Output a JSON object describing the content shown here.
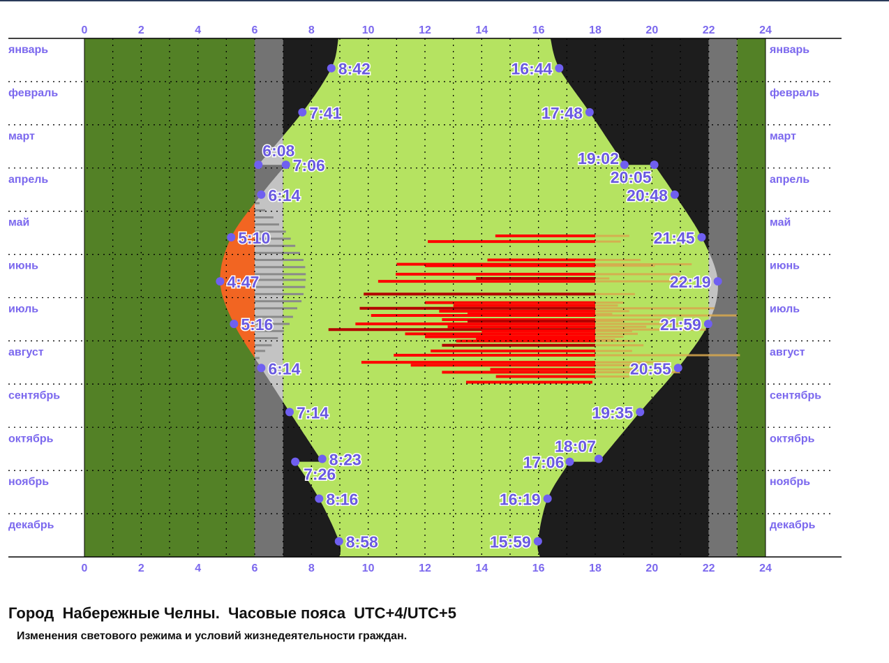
{
  "chart_data": {
    "type": "area",
    "x_axis": {
      "range": [
        0,
        24
      ],
      "ticks": [
        "0",
        "2",
        "4",
        "6",
        "8",
        "10",
        "12",
        "14",
        "16",
        "18",
        "20",
        "22",
        "24"
      ],
      "unit": "hour"
    },
    "y_axis": {
      "months": [
        "январь",
        "февраль",
        "март",
        "апрель",
        "май",
        "июнь",
        "июль",
        "август",
        "сентябрь",
        "октябрь",
        "ноябрь",
        "декабрь"
      ],
      "unit": "day of year",
      "range": [
        0,
        365
      ]
    },
    "grid": true,
    "colors": {
      "night_fixed": "#538126",
      "twilight_fixed": "#737373",
      "dark": "#1d1d1d",
      "daylight": "#b5e361",
      "daylight_in_twilight": "#c3c3c3",
      "daylight_before_6": "#f26522",
      "points": "#6f5ff0",
      "bars": "#ff0000",
      "bars_dark": "#b30000",
      "bar_extension": "#d9a84e",
      "gray_lines": "#8a8a8a"
    },
    "sunrise_segments": [
      [
        [
          0,
          8.95
        ],
        [
          21,
          8.7
        ],
        [
          52,
          7.68
        ],
        [
          89,
          6.13
        ]
      ],
      [
        [
          89,
          7.1
        ],
        [
          110,
          6.23
        ],
        [
          140,
          5.17
        ],
        [
          171,
          4.78
        ],
        [
          201,
          5.27
        ],
        [
          232,
          6.23
        ],
        [
          263,
          7.23
        ],
        [
          298,
          8.38
        ]
      ],
      [
        [
          298,
          7.43
        ],
        [
          324,
          8.27
        ],
        [
          354,
          8.97
        ],
        [
          365,
          8.99
        ]
      ]
    ],
    "sunset_segments": [
      [
        [
          0,
          16.42
        ],
        [
          21,
          16.73
        ],
        [
          52,
          17.8
        ],
        [
          89,
          19.03
        ]
      ],
      [
        [
          89,
          20.08
        ],
        [
          110,
          20.8
        ],
        [
          140,
          21.75
        ],
        [
          171,
          22.32
        ],
        [
          201,
          21.98
        ],
        [
          232,
          20.92
        ],
        [
          263,
          19.58
        ],
        [
          298,
          18.12
        ]
      ],
      [
        [
          298,
          17.1
        ],
        [
          324,
          16.32
        ],
        [
          354,
          15.98
        ],
        [
          365,
          16.05
        ]
      ]
    ],
    "points": [
      {
        "day": 21,
        "hour": 8.7,
        "label": "8:42"
      },
      {
        "day": 52,
        "hour": 7.68,
        "label": "7:41"
      },
      {
        "day": 89,
        "hour": 6.13,
        "label": "6:08"
      },
      {
        "day": 89,
        "hour": 7.1,
        "label": "7:06"
      },
      {
        "day": 110,
        "hour": 6.23,
        "label": "6:14"
      },
      {
        "day": 140,
        "hour": 5.17,
        "label": "5:10"
      },
      {
        "day": 171,
        "hour": 4.78,
        "label": "4:47"
      },
      {
        "day": 201,
        "hour": 5.27,
        "label": "5:16"
      },
      {
        "day": 232,
        "hour": 6.23,
        "label": "6:14"
      },
      {
        "day": 263,
        "hour": 7.23,
        "label": "7:14"
      },
      {
        "day": 296,
        "hour": 8.38,
        "label": "8:23"
      },
      {
        "day": 298,
        "hour": 7.43,
        "label": "7:26"
      },
      {
        "day": 324,
        "hour": 8.27,
        "label": "8:16"
      },
      {
        "day": 354,
        "hour": 8.97,
        "label": "8:58"
      },
      {
        "day": 21,
        "hour": 16.73,
        "label": "16:44"
      },
      {
        "day": 52,
        "hour": 17.8,
        "label": "17:48"
      },
      {
        "day": 89,
        "hour": 19.03,
        "label": "19:02"
      },
      {
        "day": 89,
        "hour": 20.08,
        "label": "20:05"
      },
      {
        "day": 110,
        "hour": 20.8,
        "label": "20:48"
      },
      {
        "day": 140,
        "hour": 21.75,
        "label": "21:45"
      },
      {
        "day": 171,
        "hour": 22.32,
        "label": "22:19"
      },
      {
        "day": 201,
        "hour": 21.98,
        "label": "21:59"
      },
      {
        "day": 232,
        "hour": 20.92,
        "label": "20:55"
      },
      {
        "day": 263,
        "hour": 19.58,
        "label": "19:35"
      },
      {
        "day": 296,
        "hour": 18.12,
        "label": "18:07"
      },
      {
        "day": 298,
        "hour": 17.1,
        "label": "17:06"
      },
      {
        "day": 324,
        "hour": 16.32,
        "label": "16:19"
      },
      {
        "day": 354,
        "hour": 15.98,
        "label": "15:59"
      }
    ],
    "gray_lines": [
      [
        116,
        6.17
      ],
      [
        121,
        6.37
      ],
      [
        126,
        6.66
      ],
      [
        131,
        6.86
      ],
      [
        136,
        7.1
      ],
      [
        141,
        7.27
      ],
      [
        146,
        7.43
      ],
      [
        151,
        7.6
      ],
      [
        156,
        7.72
      ],
      [
        161,
        7.78
      ],
      [
        166,
        7.8
      ],
      [
        170,
        7.8
      ],
      [
        175,
        7.78
      ],
      [
        180,
        7.72
      ],
      [
        185,
        7.65
      ],
      [
        190,
        7.5
      ],
      [
        196,
        7.35
      ],
      [
        201,
        7.23
      ],
      [
        206,
        7.03
      ],
      [
        211,
        6.82
      ],
      [
        216,
        6.6
      ],
      [
        220,
        6.37
      ],
      [
        225,
        6.17
      ]
    ],
    "red_bars": [
      {
        "day": 139,
        "start": 14.48,
        "end": 18,
        "ext": 19.2,
        "tone": "red"
      },
      {
        "day": 143,
        "start": 12.1,
        "end": 18,
        "ext": 18.9,
        "tone": "red"
      },
      {
        "day": 156,
        "start": 14.2,
        "end": 18,
        "ext": 19.6,
        "tone": "red"
      },
      {
        "day": 159,
        "start": 11.0,
        "end": 18,
        "ext": 21.4,
        "tone": "red"
      },
      {
        "day": 160,
        "start": 12.0,
        "end": 18,
        "ext": 20.1,
        "tone": "red"
      },
      {
        "day": 166,
        "start": 10.97,
        "end": 18,
        "ext": 21.0,
        "tone": "red"
      },
      {
        "day": 169,
        "start": 13.8,
        "end": 18,
        "ext": 18.5,
        "tone": "dark"
      },
      {
        "day": 171,
        "start": 10.35,
        "end": 18,
        "ext": 21.3,
        "tone": "red"
      },
      {
        "day": 180,
        "start": 9.84,
        "end": 18,
        "ext": 19.4,
        "tone": "dark"
      },
      {
        "day": 186,
        "start": 12.0,
        "end": 18,
        "ext": 19.0,
        "tone": "red"
      },
      {
        "day": 188,
        "start": 13.0,
        "end": 18,
        "ext": 18.8,
        "tone": "red"
      },
      {
        "day": 190,
        "start": 9.7,
        "end": 18,
        "ext": 22.2,
        "tone": "dark"
      },
      {
        "day": 192,
        "start": 12.5,
        "end": 18,
        "ext": 19.2,
        "tone": "red"
      },
      {
        "day": 194,
        "start": 13.5,
        "end": 18,
        "ext": 18.6,
        "tone": "red"
      },
      {
        "day": 195,
        "start": 10.1,
        "end": 18,
        "ext": 23.0,
        "tone": "red"
      },
      {
        "day": 198,
        "start": 12.6,
        "end": 18,
        "ext": 20.6,
        "tone": "red"
      },
      {
        "day": 199,
        "start": 13.5,
        "end": 18,
        "ext": 19.0,
        "tone": "dark"
      },
      {
        "day": 201,
        "start": 9.55,
        "end": 18,
        "ext": 21.5,
        "tone": "red"
      },
      {
        "day": 203,
        "start": 12.8,
        "end": 18,
        "ext": 19.8,
        "tone": "red"
      },
      {
        "day": 205,
        "start": 8.6,
        "end": 18,
        "ext": 21.9,
        "tone": "dark"
      },
      {
        "day": 206,
        "start": 14.0,
        "end": 18,
        "ext": 19.3,
        "tone": "red"
      },
      {
        "day": 208,
        "start": 11.3,
        "end": 18,
        "ext": 19.5,
        "tone": "red"
      },
      {
        "day": 210,
        "start": 12.0,
        "end": 18,
        "ext": 19.0,
        "tone": "red"
      },
      {
        "day": 212,
        "start": 13.8,
        "end": 18,
        "ext": 18.7,
        "tone": "red"
      },
      {
        "day": 213,
        "start": 13.1,
        "end": 18,
        "ext": 19.4,
        "tone": "red"
      },
      {
        "day": 216,
        "start": 12.6,
        "end": 18,
        "ext": 19.7,
        "tone": "dark"
      },
      {
        "day": 220,
        "start": 12.2,
        "end": 18,
        "ext": 19.3,
        "tone": "red"
      },
      {
        "day": 223,
        "start": 10.9,
        "end": 18,
        "ext": 23.1,
        "tone": "red"
      },
      {
        "day": 228,
        "start": 9.76,
        "end": 18,
        "ext": 20.5,
        "tone": "red"
      },
      {
        "day": 230,
        "start": 11.5,
        "end": 18,
        "ext": 19.8,
        "tone": "red"
      },
      {
        "day": 233,
        "start": 14.3,
        "end": 18,
        "ext": 19.5,
        "tone": "red"
      },
      {
        "day": 235,
        "start": 12.6,
        "end": 18,
        "ext": 21.0,
        "tone": "red"
      },
      {
        "day": 238,
        "start": 14.5,
        "end": 18,
        "ext": 19.2,
        "tone": "red"
      },
      {
        "day": 242,
        "start": 13.45,
        "end": 17.9,
        "ext": 17.9,
        "tone": "red"
      }
    ]
  },
  "caption": "Город  Набережные Челны.  Часовые пояса  UTC+4/UTC+5",
  "subcaption": "Изменения светового режима и условий жизнедеятельности граждан."
}
